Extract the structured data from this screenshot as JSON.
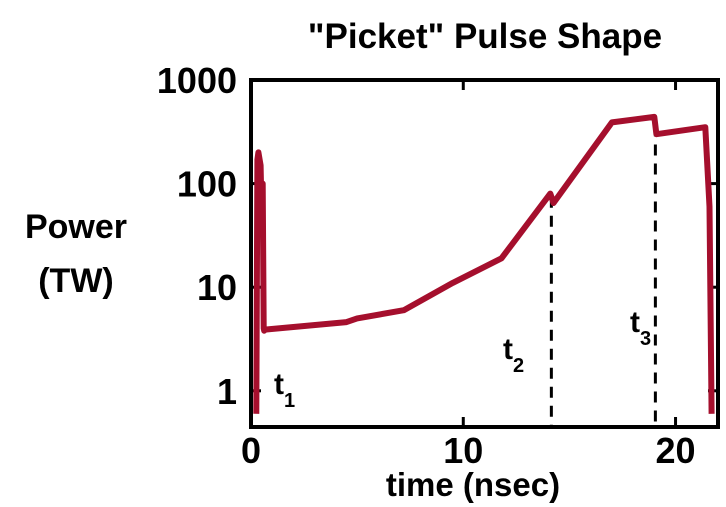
{
  "chart_data": {
    "type": "line",
    "title": "\"Picket\" Pulse Shape",
    "ylabel_lines": [
      "Power",
      "(TW)"
    ],
    "xlabel": "time (nsec)",
    "xlim": [
      0,
      22
    ],
    "ylim": [
      0.5,
      1000
    ],
    "yscale": "log",
    "x_ticks": [
      0,
      10,
      20
    ],
    "x_tick_labels": [
      "0",
      "10",
      "20"
    ],
    "y_ticks": [
      1,
      10,
      100,
      1000
    ],
    "y_tick_labels": [
      "1",
      "10",
      "100",
      "1000"
    ],
    "grid": false,
    "legend": "none",
    "line_color": "#a50f2d",
    "series": [
      {
        "x": [
          0.25,
          0.3,
          0.35,
          0.45,
          0.5,
          0.55,
          0.6,
          0.62,
          0.65,
          4.5,
          5.0,
          7.2,
          9.5,
          11.8,
          14.1,
          14.25,
          17.0,
          19.0,
          19.1,
          21.4,
          21.6,
          21.7
        ],
        "y": [
          0.6,
          170,
          200,
          150,
          50,
          100,
          4,
          3.8,
          3.9,
          4.6,
          5.0,
          6.0,
          11,
          19,
          80,
          65,
          390,
          440,
          300,
          350,
          60,
          0.6
        ]
      }
    ],
    "annotations": [
      {
        "base": "t",
        "sub": "1"
      },
      {
        "base": "t",
        "sub": "2",
        "x": 14.15
      },
      {
        "base": "t",
        "sub": "3",
        "x": 19.05
      }
    ],
    "marker_lines_x": [
      14.15,
      19.05
    ]
  }
}
